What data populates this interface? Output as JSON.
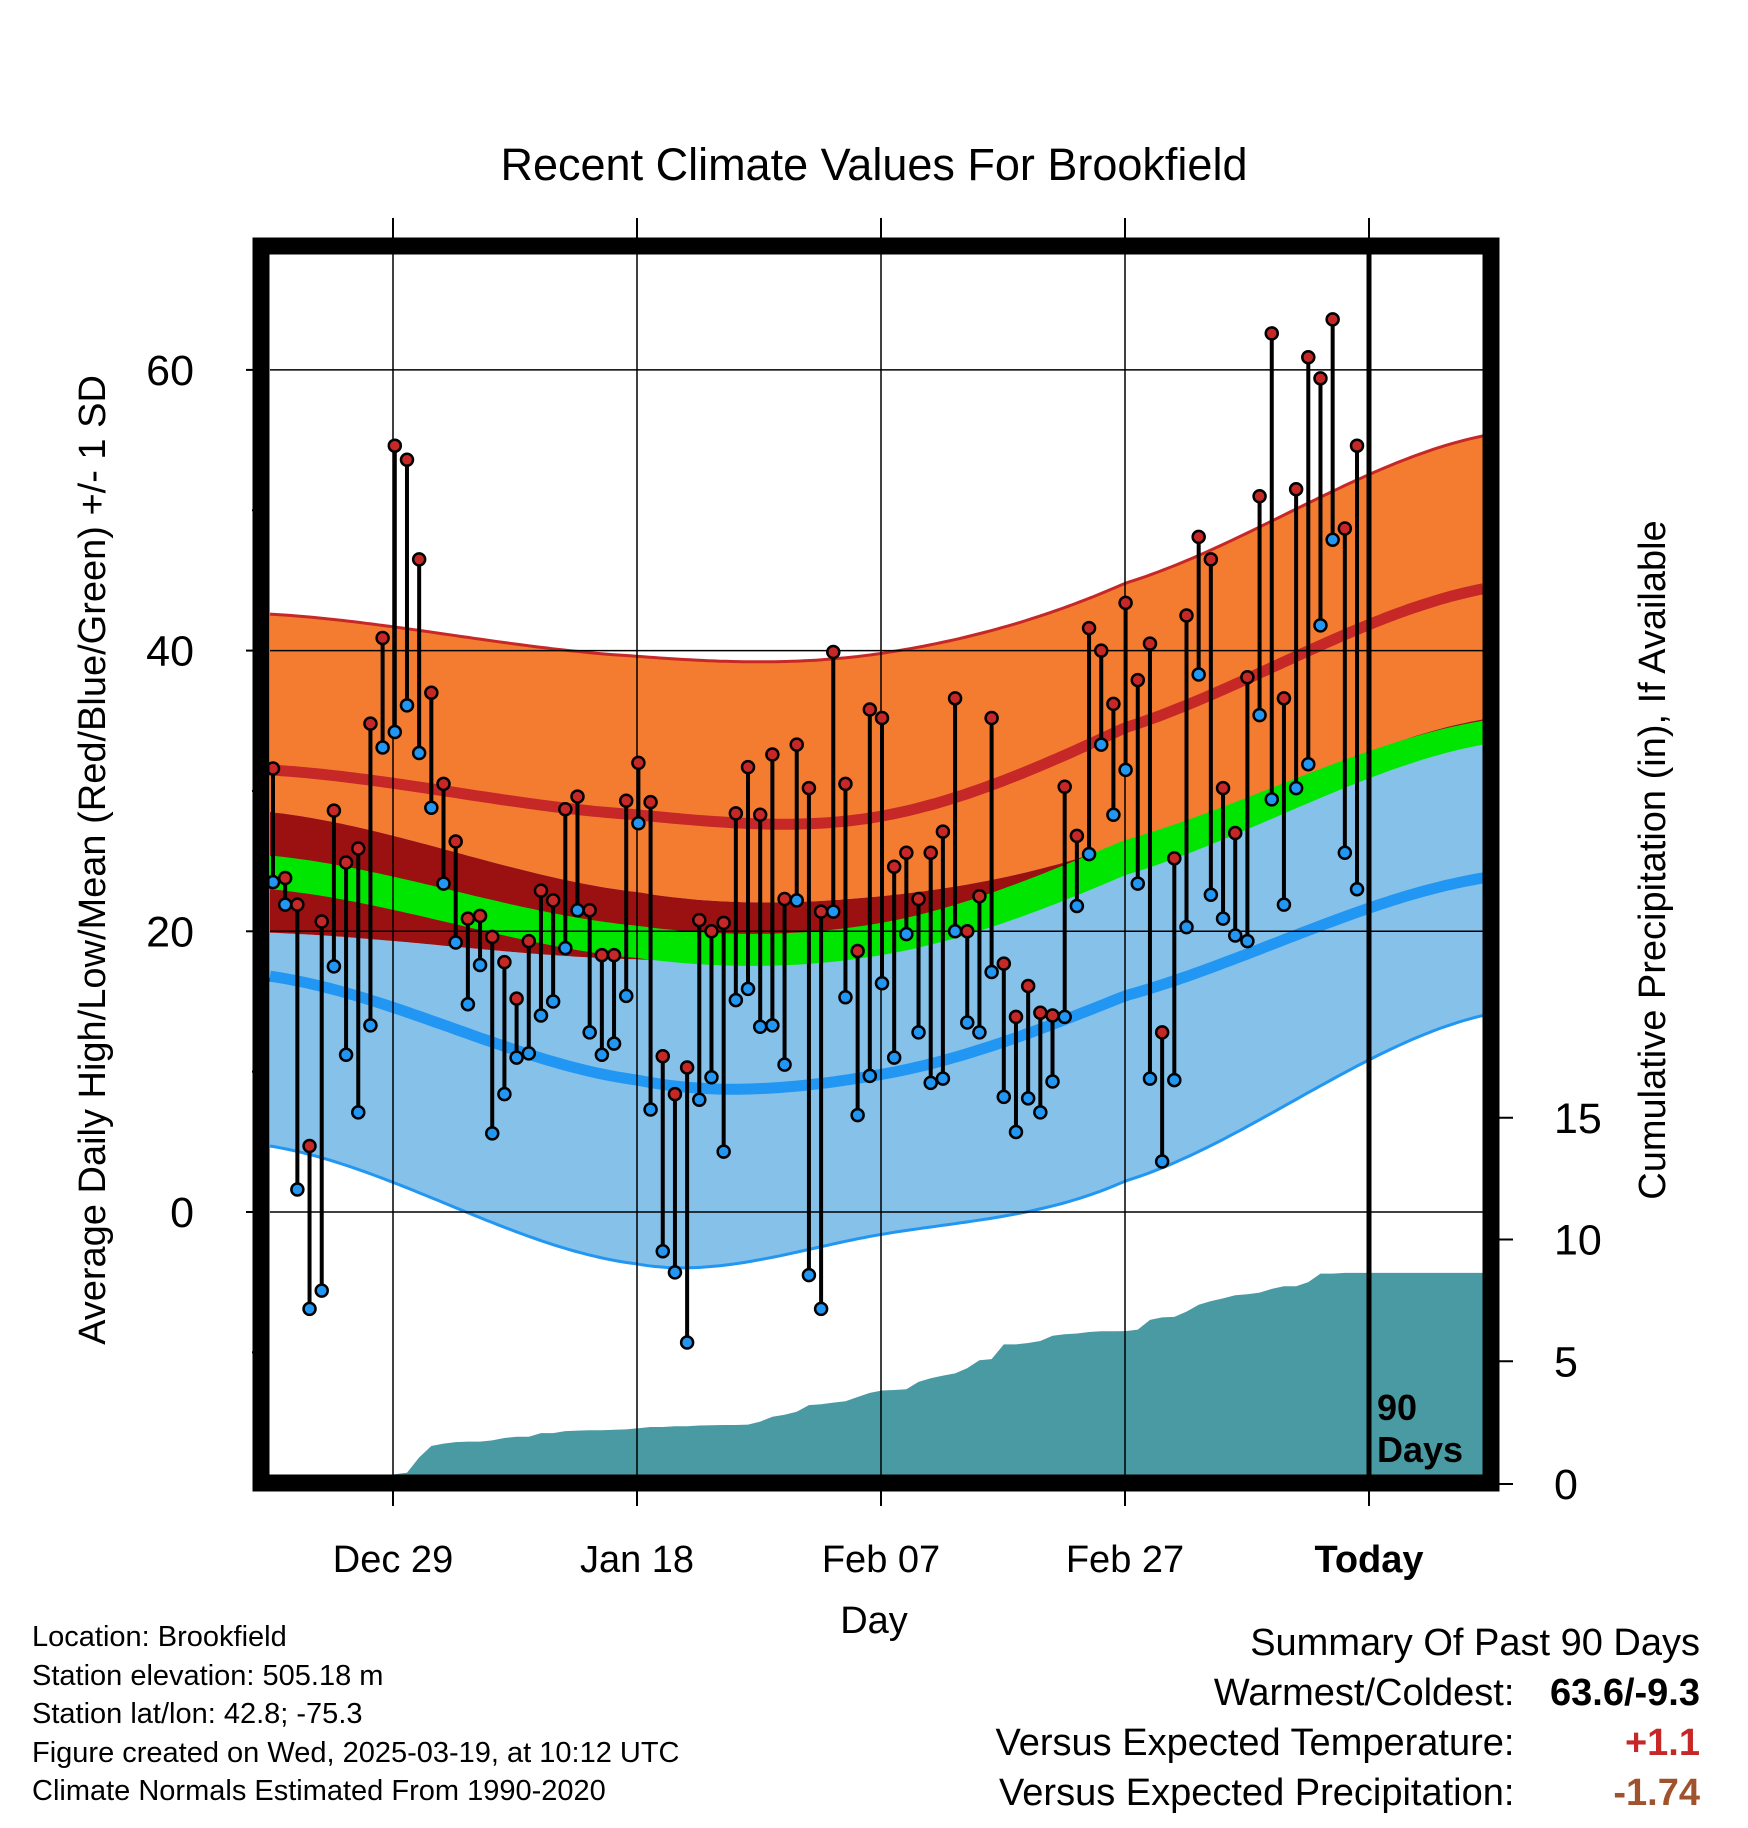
{
  "chart_data": {
    "type": "line",
    "title": "Recent Climate Values For Brookfield",
    "xlabel": "Day",
    "ylabel": "Average Daily High/Low/Mean (Red/Blue/Green) +/- 1 SD",
    "y2label": "Cumulative Precipitation (in), If Available",
    "x_ticks": [
      "Dec 29",
      "Jan 18",
      "Feb 07",
      "Feb 27",
      "Today"
    ],
    "y_ticks": [
      0,
      20,
      40,
      60
    ],
    "y2_ticks": [
      0,
      5,
      10,
      15
    ],
    "ylim": [
      -18.5,
      68
    ],
    "y2lim": [
      0,
      21.5
    ],
    "marker_label": "90 Days",
    "colors": {
      "high": "#c62828",
      "low": "#2196f3",
      "mean": "#00e600",
      "high_band": "#f47c30",
      "low_band": "#85c1e9",
      "overlap": "#9b1111",
      "precip": "#4a9aa3"
    },
    "normals": {
      "high_mean": [
        31.5,
        28.3,
        28.2,
        34.5,
        44.4
      ],
      "high_sd_upper": [
        42.6,
        39.6,
        39.8,
        44.8,
        55.3
      ],
      "high_sd_lower": [
        28.5,
        22.8,
        22.5,
        26.3,
        35.1
      ],
      "low_mean": [
        16.8,
        9.4,
        9.8,
        15.4,
        23.8
      ],
      "low_sd_upper": [
        19.9,
        18.0,
        18.6,
        25.3,
        33.4
      ],
      "low_sd_lower": [
        4.7,
        -3.7,
        -1.6,
        2.2,
        14.0
      ],
      "mean": [
        23.7,
        19.0,
        19.3,
        25.0,
        34.1
      ],
      "mean_sd_upper": [
        25.4,
        20.4,
        20.6,
        26.5,
        35.0
      ],
      "mean_sd_lower": [
        23.0,
        18.1,
        18.3,
        24.0,
        33.3
      ]
    },
    "series": [
      {
        "name": "High",
        "values": [
          31.6,
          23.8,
          21.9,
          4.7,
          20.7,
          28.6,
          24.9,
          25.9,
          34.8,
          40.9,
          54.6,
          53.6,
          46.5,
          37.0,
          30.5,
          26.4,
          20.9,
          21.1,
          19.6,
          17.8,
          15.2,
          19.3,
          22.9,
          22.2,
          28.7,
          29.6,
          21.5,
          18.3,
          18.3,
          29.3,
          32.0,
          29.2,
          11.1,
          8.4,
          10.3,
          20.8,
          20.0,
          20.6,
          28.4,
          31.7,
          28.3,
          32.6,
          22.3,
          33.3,
          30.2,
          21.4,
          39.9,
          30.5,
          18.6,
          35.8,
          35.2,
          24.6,
          25.6,
          22.3,
          25.6,
          27.1,
          36.6,
          20.0,
          22.5,
          35.2,
          17.7,
          13.9,
          16.1,
          14.2,
          14.0,
          30.3,
          26.8,
          41.6,
          40.0,
          36.2,
          43.4,
          37.9,
          40.5,
          12.8,
          25.2,
          42.5,
          48.1,
          46.5,
          30.2,
          27.0,
          38.1,
          51.0,
          62.6,
          36.6,
          51.5,
          60.9,
          59.4,
          63.6,
          48.7,
          54.6
        ]
      },
      {
        "name": "Low",
        "values": [
          23.5,
          21.9,
          1.6,
          -6.9,
          -5.6,
          17.5,
          11.2,
          7.1,
          13.3,
          33.1,
          34.2,
          36.1,
          32.7,
          28.8,
          23.4,
          19.2,
          14.8,
          17.6,
          5.6,
          8.4,
          11.0,
          11.3,
          14.0,
          15.0,
          18.8,
          21.5,
          12.8,
          11.2,
          12.0,
          15.4,
          27.7,
          7.3,
          -2.8,
          -4.3,
          -9.3,
          8.0,
          9.6,
          4.3,
          15.1,
          15.9,
          13.2,
          13.3,
          10.5,
          22.2,
          -4.5,
          -6.9,
          21.4,
          15.3,
          6.9,
          9.7,
          16.3,
          11.0,
          19.8,
          12.8,
          9.2,
          9.5,
          20.0,
          13.5,
          12.8,
          17.1,
          8.2,
          5.7,
          8.1,
          7.1,
          9.3,
          13.9,
          21.8,
          25.5,
          33.3,
          28.3,
          31.5,
          23.4,
          9.5,
          3.6,
          9.4,
          20.3,
          38.3,
          22.6,
          20.9,
          19.7,
          19.3,
          35.4,
          29.4,
          21.9,
          30.2,
          31.9,
          41.8,
          47.9,
          25.6,
          23.0
        ]
      },
      {
        "name": "Cumulative Precipitation",
        "values": [
          0.0,
          0.0,
          0.0,
          0.0,
          0.0,
          0.23,
          0.23,
          0.23,
          0.23,
          0.3,
          0.36,
          0.42,
          1.05,
          1.52,
          1.62,
          1.68,
          1.7,
          1.7,
          1.75,
          1.85,
          1.9,
          1.9,
          2.05,
          2.05,
          2.13,
          2.15,
          2.17,
          2.17,
          2.19,
          2.2,
          2.25,
          2.3,
          2.3,
          2.33,
          2.33,
          2.36,
          2.37,
          2.38,
          2.38,
          2.4,
          2.52,
          2.72,
          2.8,
          2.93,
          3.2,
          3.23,
          3.3,
          3.36,
          3.53,
          3.7,
          3.8,
          3.82,
          3.85,
          4.15,
          4.3,
          4.41,
          4.5,
          4.72,
          5.04,
          5.09,
          5.69,
          5.69,
          5.75,
          5.83,
          6.05,
          6.11,
          6.14,
          6.2,
          6.23,
          6.23,
          6.24,
          6.3,
          6.7,
          6.8,
          6.82,
          7.04,
          7.32,
          7.47,
          7.58,
          7.71,
          7.75,
          7.82,
          7.97,
          8.08,
          8.08,
          8.25,
          8.6,
          8.6,
          8.63,
          8.63
        ]
      }
    ]
  },
  "footer": {
    "location": "Location: Brookfield",
    "elevation": "Station elevation: 505.18 m",
    "latlon": "Station lat/lon: 42.8; -75.3",
    "created": "Figure created on Wed, 2025-03-19, at 10:12 UTC",
    "normals": "Climate Normals Estimated From 1990-2020"
  },
  "summary": {
    "title": "Summary Of Past 90 Days",
    "warmest_label": "Warmest/Coldest:",
    "warmest_value": "63.6/-9.3",
    "temp_label": "Versus Expected Temperature:",
    "temp_value": "+1.1",
    "temp_color": "#c62828",
    "precip_label": "Versus Expected Precipitation:",
    "precip_value": "-1.74",
    "precip_color": "#a0522d"
  }
}
